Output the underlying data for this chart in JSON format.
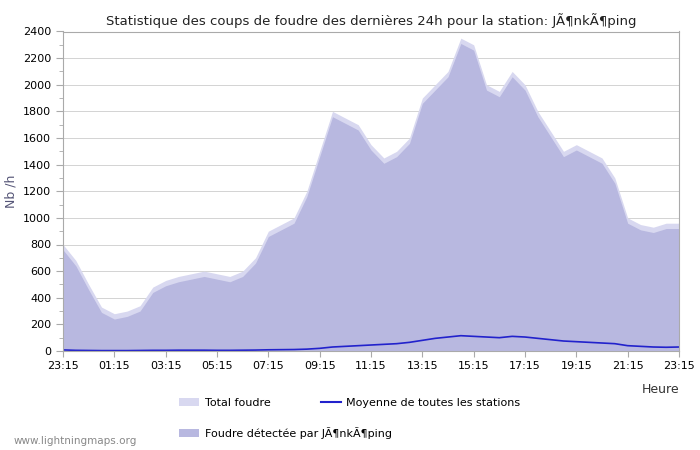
{
  "title": "Statistique des coups de foudre des dernières 24h pour la station: JÃ¶nkÃ¶ping",
  "ylabel": "Nb /h",
  "xlabel": "Heure",
  "ylim": [
    0,
    2400
  ],
  "yticks": [
    0,
    200,
    400,
    600,
    800,
    1000,
    1200,
    1400,
    1600,
    1800,
    2000,
    2200,
    2400
  ],
  "xtick_labels": [
    "23:15",
    "01:15",
    "03:15",
    "05:15",
    "07:15",
    "09:15",
    "11:15",
    "13:15",
    "15:15",
    "17:15",
    "19:15",
    "21:15",
    "23:15"
  ],
  "fill_color_total": "#d8d8f0",
  "fill_color_local": "#b8b8e0",
  "line_color_moyenne": "#2222cc",
  "bg_color": "#ffffff",
  "legend_labels": [
    "Total foudre",
    "Foudre détectée par JÃ¶nkÃ¶ping",
    "Moyenne de toutes les stations"
  ],
  "watermark": "www.lightningmaps.org",
  "total_foudre": [
    800,
    680,
    500,
    330,
    280,
    300,
    340,
    480,
    530,
    560,
    580,
    600,
    580,
    560,
    600,
    700,
    900,
    950,
    1000,
    1200,
    1500,
    1800,
    1750,
    1700,
    1550,
    1450,
    1500,
    1600,
    1900,
    2000,
    2100,
    2350,
    2300,
    2000,
    1950,
    2100,
    2000,
    1800,
    1650,
    1500,
    1550,
    1500,
    1450,
    1300,
    1000,
    950,
    930,
    960,
    960
  ],
  "local_foudre": [
    760,
    640,
    460,
    290,
    240,
    260,
    300,
    440,
    490,
    520,
    540,
    560,
    540,
    520,
    560,
    660,
    860,
    910,
    960,
    1160,
    1460,
    1760,
    1710,
    1660,
    1510,
    1410,
    1460,
    1560,
    1860,
    1960,
    2060,
    2310,
    2260,
    1960,
    1910,
    2060,
    1960,
    1760,
    1610,
    1460,
    1510,
    1460,
    1410,
    1260,
    960,
    910,
    890,
    920,
    920
  ],
  "moyenne": [
    8,
    5,
    4,
    3,
    3,
    3,
    4,
    5,
    5,
    6,
    6,
    6,
    5,
    5,
    6,
    7,
    9,
    10,
    11,
    14,
    20,
    30,
    35,
    40,
    45,
    50,
    55,
    65,
    80,
    95,
    105,
    115,
    110,
    105,
    100,
    110,
    105,
    95,
    85,
    75,
    70,
    65,
    60,
    55,
    40,
    35,
    30,
    28,
    30
  ]
}
